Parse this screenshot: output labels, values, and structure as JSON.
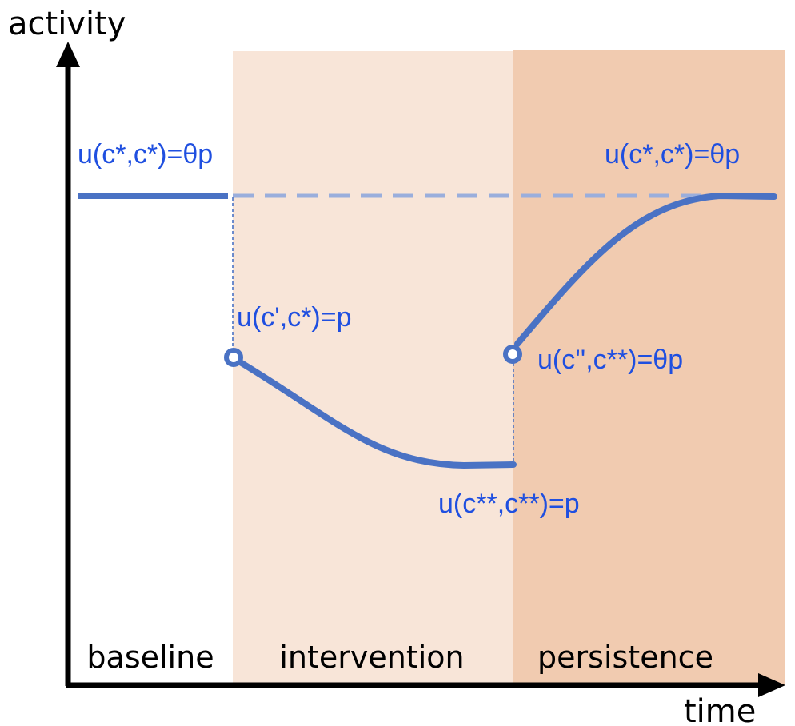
{
  "axes": {
    "y_label": "activity",
    "x_label": "time"
  },
  "phases": [
    {
      "label": "baseline",
      "color": "#ffffff"
    },
    {
      "label": "intervention",
      "color": "#f8e5d8"
    },
    {
      "label": "persistence",
      "color": "#f1cbb0"
    }
  ],
  "annotations": {
    "baseline_level": "u(c*,c*)=θp",
    "intervention_start": "u(c',c*)=p",
    "intervention_end": "u(c**,c**)=p",
    "persistence_start": "u(c'',c**)=θp",
    "persistence_level": "u(c*,c*)=θp"
  },
  "colors": {
    "curve": "#4a72c4",
    "dashed_reference": "#9aaedc",
    "annotation_text": "#1f4fe0",
    "axis": "#000000"
  }
}
